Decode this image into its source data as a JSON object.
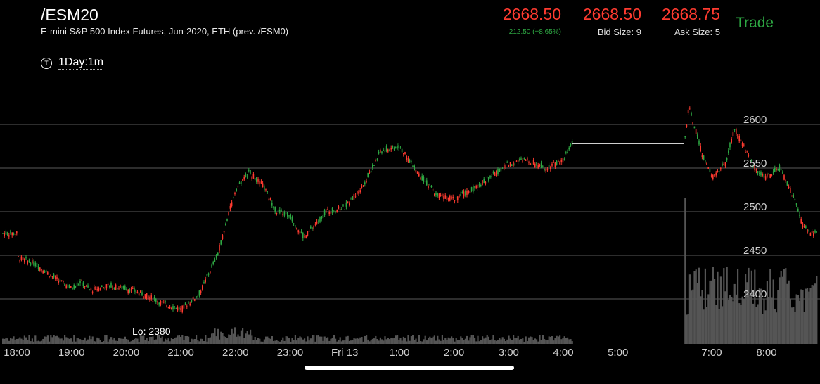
{
  "header": {
    "symbol": "/ESM20",
    "description": "E-mini S&P 500 Index Futures, Jun-2020, ETH (prev. /ESM0)",
    "last": "2668.50",
    "change": "212.50 (+8.65%)",
    "bid": "2668.50",
    "bid_size": "Bid Size: 9",
    "ask": "2668.75",
    "ask_size": "Ask Size: 5",
    "trade_label": "Trade"
  },
  "timeframe": {
    "icon_letter": "T",
    "label": "1Day:1m"
  },
  "colors": {
    "up": "#2ea843",
    "down": "#ff3b30",
    "grid": "#5a5a5a",
    "volume": "#555555"
  },
  "chart_data": {
    "type": "candlestick",
    "y_ticks": [
      "2600",
      "2550",
      "2500",
      "2450",
      "2400"
    ],
    "ylim": [
      2380,
      2625
    ],
    "x_ticks": [
      "18:00",
      "19:00",
      "20:00",
      "21:00",
      "22:00",
      "23:00",
      "Fri 13",
      "1:00",
      "2:00",
      "3:00",
      "4:00",
      "5:00",
      "7:00",
      "8:00"
    ],
    "low_label": "Lo: 2380",
    "price_series": [
      {
        "t": "18:00",
        "p": 2448
      },
      {
        "t": "18:20",
        "p": 2440
      },
      {
        "t": "18:40",
        "p": 2425
      },
      {
        "t": "19:00",
        "p": 2412
      },
      {
        "t": "19:10",
        "p": 2420
      },
      {
        "t": "19:20",
        "p": 2410
      },
      {
        "t": "19:40",
        "p": 2415
      },
      {
        "t": "20:00",
        "p": 2412
      },
      {
        "t": "20:20",
        "p": 2405
      },
      {
        "t": "20:40",
        "p": 2395
      },
      {
        "t": "21:00",
        "p": 2388
      },
      {
        "t": "21:20",
        "p": 2405
      },
      {
        "t": "21:40",
        "p": 2450
      },
      {
        "t": "22:00",
        "p": 2525
      },
      {
        "t": "22:15",
        "p": 2545
      },
      {
        "t": "22:30",
        "p": 2530
      },
      {
        "t": "22:45",
        "p": 2500
      },
      {
        "t": "23:00",
        "p": 2495
      },
      {
        "t": "23:15",
        "p": 2470
      },
      {
        "t": "23:40",
        "p": 2500
      },
      {
        "t": "00:00",
        "p": 2505
      },
      {
        "t": "00:20",
        "p": 2530
      },
      {
        "t": "00:40",
        "p": 2570
      },
      {
        "t": "01:00",
        "p": 2575
      },
      {
        "t": "01:20",
        "p": 2545
      },
      {
        "t": "01:40",
        "p": 2520
      },
      {
        "t": "02:00",
        "p": 2515
      },
      {
        "t": "02:20",
        "p": 2525
      },
      {
        "t": "02:40",
        "p": 2540
      },
      {
        "t": "03:00",
        "p": 2555
      },
      {
        "t": "03:20",
        "p": 2560
      },
      {
        "t": "03:40",
        "p": 2550
      },
      {
        "t": "04:00",
        "p": 2560
      },
      {
        "t": "04:10",
        "p": 2578
      },
      {
        "t": "06:30",
        "p": 2578
      },
      {
        "t": "06:35",
        "p": 2620
      },
      {
        "t": "06:50",
        "p": 2565
      },
      {
        "t": "07:00",
        "p": 2540
      },
      {
        "t": "07:15",
        "p": 2555
      },
      {
        "t": "07:25",
        "p": 2595
      },
      {
        "t": "07:40",
        "p": 2565
      },
      {
        "t": "07:50",
        "p": 2545
      },
      {
        "t": "08:00",
        "p": 2540
      },
      {
        "t": "08:15",
        "p": 2550
      },
      {
        "t": "08:30",
        "p": 2515
      },
      {
        "t": "08:40",
        "p": 2483
      },
      {
        "t": "08:50",
        "p": 2475
      }
    ]
  }
}
